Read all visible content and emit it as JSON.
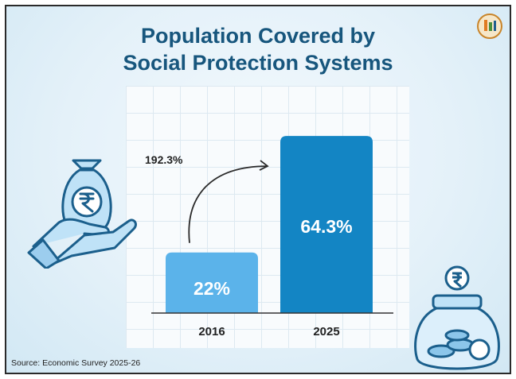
{
  "title": {
    "line1": "Population Covered by",
    "line2": "Social Protection Systems"
  },
  "source": "Source: Economic Survey 2025-26",
  "colors": {
    "title": "#17567d",
    "bar_2016": "#5bb3ea",
    "bar_2025": "#1385c4",
    "label_on_bar": "#ffffff",
    "axis_text": "#222222",
    "annotation": "#222222"
  },
  "icons": [
    "money-bag-in-hand-icon",
    "coin-jar-icon",
    "logo-icon"
  ],
  "chart_data": {
    "type": "bar",
    "title": "Population Covered by Social Protection Systems",
    "categories": [
      "2016",
      "2025"
    ],
    "values": [
      22,
      64.3
    ],
    "value_labels": [
      "22%",
      "64.3%"
    ],
    "unit": "%",
    "ylim": [
      0,
      75
    ],
    "xlabel": "",
    "ylabel": "",
    "grid": true,
    "legend": "none",
    "annotation": {
      "text": "192.3%",
      "from_category": "2016",
      "to_category": "2025"
    }
  }
}
